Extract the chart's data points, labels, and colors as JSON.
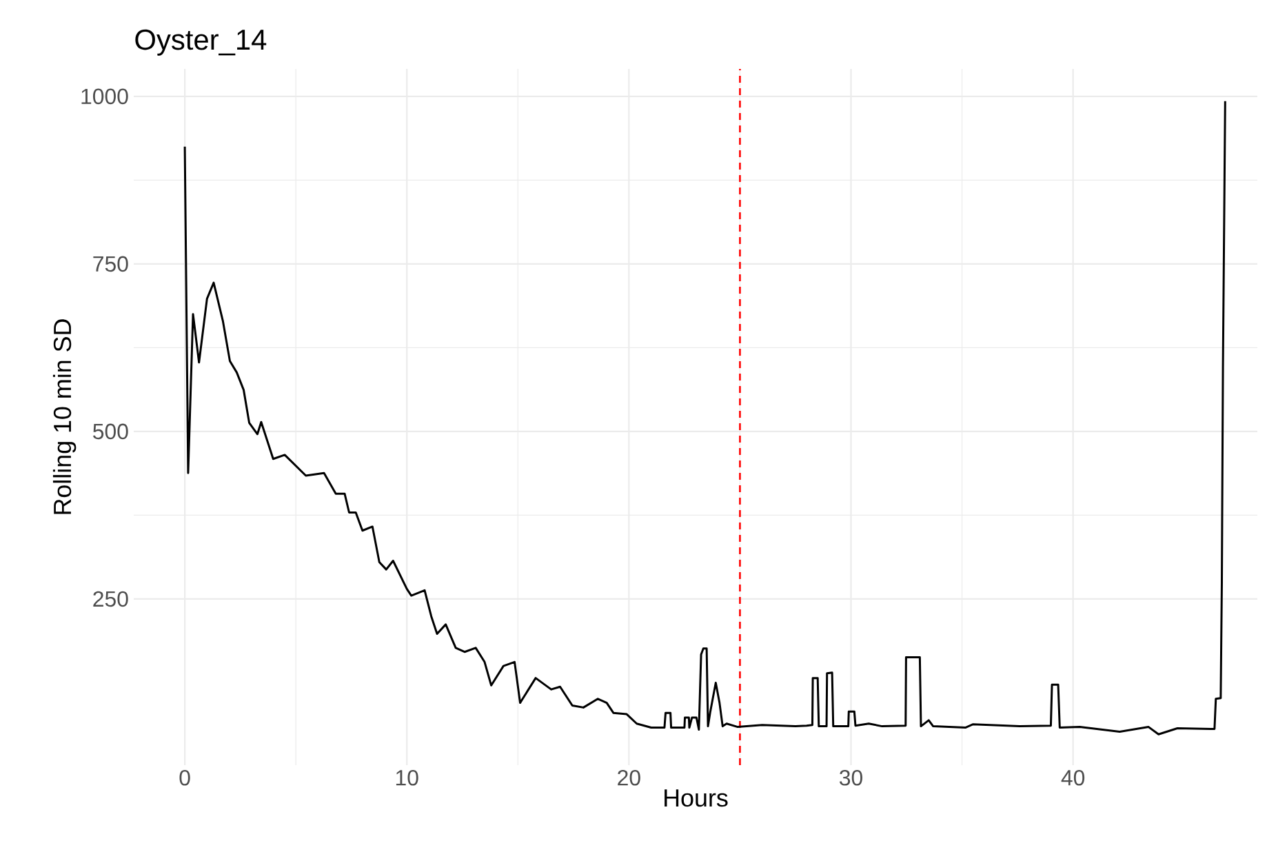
{
  "chart_data": {
    "type": "line",
    "title": "Oyster_14",
    "xlabel": "Hours",
    "ylabel": "Rolling 10 min SD",
    "color": "#000000",
    "x": [
      0,
      0.15,
      0.37,
      0.64,
      1.0,
      1.3,
      1.72,
      2.03,
      2.34,
      2.65,
      2.9,
      3.27,
      3.44,
      3.98,
      4.5,
      5.45,
      6.27,
      6.8,
      7.2,
      7.4,
      7.7,
      8.0,
      8.45,
      8.76,
      9.07,
      9.38,
      10.0,
      10.2,
      10.8,
      11.1,
      11.36,
      11.75,
      12.2,
      12.6,
      13.1,
      13.5,
      13.8,
      14.35,
      14.85,
      14.95,
      15.1,
      15.8,
      16.5,
      16.9,
      17.45,
      17.95,
      18.6,
      19.0,
      19.3,
      19.9,
      20.35,
      21.0,
      21.6,
      21.65,
      21.87,
      21.9,
      22.5,
      22.52,
      22.7,
      22.72,
      22.84,
      23.04,
      23.15,
      23.25,
      23.35,
      23.5,
      23.56,
      23.66,
      23.91,
      24.08,
      24.22,
      24.4,
      24.9,
      26.0,
      27.5,
      28.0,
      28.26,
      28.28,
      28.5,
      28.55,
      28.9,
      28.92,
      29.15,
      29.2,
      29.88,
      29.9,
      30.15,
      30.2,
      30.8,
      31.4,
      32.46,
      32.48,
      33.1,
      33.15,
      33.5,
      33.7,
      35.15,
      35.5,
      37.6,
      39.0,
      39.05,
      39.33,
      39.4,
      40.3,
      42.1,
      43.4,
      43.85,
      44.7,
      46.2,
      46.37,
      46.43,
      46.65,
      46.7,
      46.75,
      46.85
    ],
    "values": [
      925,
      438,
      675,
      603,
      698,
      722,
      664,
      605,
      588,
      562,
      513,
      496,
      514,
      459,
      465,
      434,
      438,
      407,
      407,
      379,
      379,
      352,
      358,
      305,
      294,
      307,
      265,
      255,
      263,
      224,
      198,
      212,
      177,
      171,
      177,
      156,
      121,
      150,
      156,
      132,
      95,
      132,
      115,
      119,
      91,
      88,
      101,
      95,
      80,
      78,
      64,
      58,
      58,
      80,
      80,
      58,
      58,
      73,
      73,
      58,
      73,
      73,
      55,
      167,
      176,
      176,
      60,
      81,
      125,
      95,
      60,
      64,
      59,
      62,
      60,
      61,
      62,
      132,
      132,
      60,
      60,
      139,
      140,
      60,
      60,
      82,
      82,
      61,
      64,
      60,
      61,
      163,
      163,
      60,
      69,
      60,
      58,
      63,
      60,
      61,
      122,
      122,
      58,
      59,
      52,
      59,
      48,
      57,
      56,
      56,
      101,
      102,
      274,
      595,
      993
    ],
    "xlim": [
      -2.3,
      48.3
    ],
    "ylim": [
      2,
      1041
    ],
    "xticks": [
      0,
      10,
      20,
      30,
      40
    ],
    "yticks": [
      250,
      500,
      750,
      1000
    ],
    "grid": true,
    "ref_lines": [
      {
        "axis": "x",
        "value": 25,
        "color": "#ff0000",
        "line_style": "dashed"
      }
    ]
  }
}
